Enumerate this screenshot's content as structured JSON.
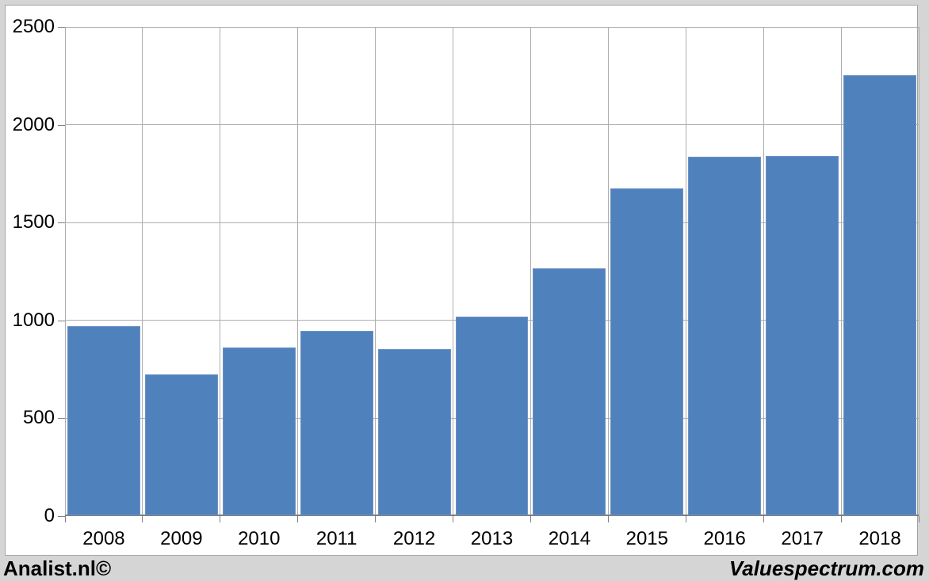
{
  "window": {
    "background": "#d5d5d5",
    "panel_background": "#ffffff",
    "panel_border": "#a3a3a3"
  },
  "chart_data": {
    "type": "bar",
    "title": "",
    "xlabel": "",
    "ylabel": "",
    "categories": [
      "2008",
      "2009",
      "2010",
      "2011",
      "2012",
      "2013",
      "2014",
      "2015",
      "2016",
      "2017",
      "2018"
    ],
    "values": [
      970,
      725,
      860,
      945,
      855,
      1020,
      1265,
      1675,
      1835,
      1840,
      2255
    ],
    "ylim": [
      0,
      2500
    ],
    "yticks": [
      0,
      500,
      1000,
      1500,
      2000,
      2500
    ],
    "grid": true,
    "legend": false,
    "bar_color": "#4f81bd",
    "bar_border_color": "#6d92c4",
    "gridline_color": "#adadad",
    "axis_color": "#7f7f7f",
    "label_color": "#000000"
  },
  "branding": {
    "left": "Analist.nl©",
    "right": "Valuespectrum.com"
  }
}
